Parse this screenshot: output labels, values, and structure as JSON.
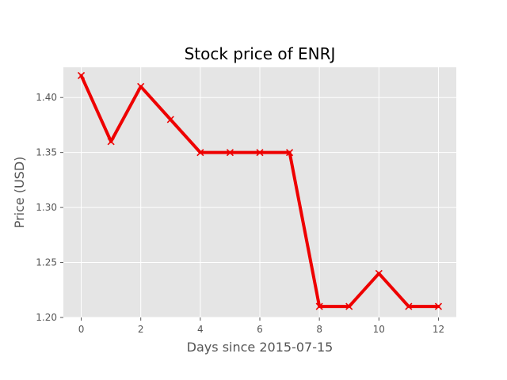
{
  "chart_data": {
    "type": "line",
    "title": "Stock price of ENRJ",
    "xlabel": "Days since 2015-07-15",
    "ylabel": "Price (USD)",
    "x": [
      0,
      1,
      2,
      3,
      4,
      5,
      6,
      7,
      8,
      9,
      10,
      11,
      12
    ],
    "series": [
      {
        "values": [
          1.42,
          1.36,
          1.41,
          1.38,
          1.35,
          1.35,
          1.35,
          1.35,
          1.21,
          1.21,
          1.24,
          1.21,
          1.21
        ]
      }
    ],
    "xticks": [
      "0",
      "2",
      "4",
      "6",
      "8",
      "10",
      "12"
    ],
    "yticks": [
      "1.20",
      "1.25",
      "1.30",
      "1.35",
      "1.40"
    ],
    "xlim": [
      -0.6,
      12.6
    ],
    "ylim": [
      1.2,
      1.4275
    ],
    "grid": true,
    "marker": "x",
    "line_color": "#ee0000",
    "background_color": "#e5e5e5",
    "grid_color": "#ffffff"
  }
}
